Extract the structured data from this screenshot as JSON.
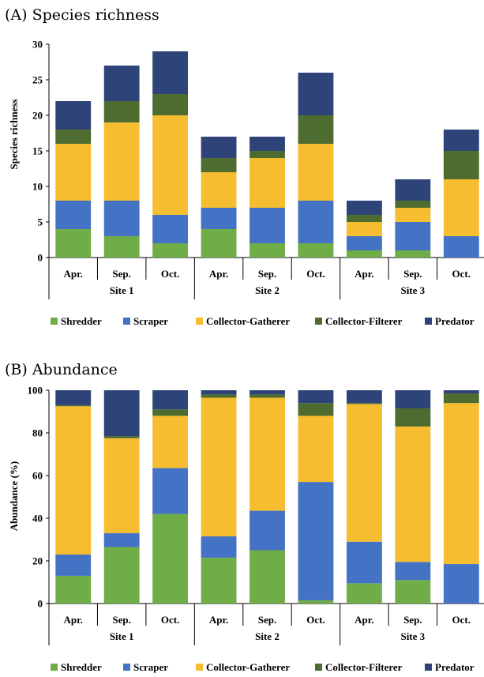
{
  "colors": {
    "Shredder": "#70ad47",
    "Scraper": "#4472c4",
    "Collector-Gatherer": "#f5bd2f",
    "Collector-Filterer": "#4e6b30",
    "Predator": "#2e4478"
  },
  "chart_data": [
    {
      "type": "bar",
      "stacked": true,
      "title": "(A) Species richness",
      "ylabel": "Species richness",
      "xlabel": "",
      "ylim": [
        0,
        30
      ],
      "yticks": [
        0,
        5,
        10,
        15,
        20,
        25,
        30
      ],
      "grid": false,
      "legend": "bottom",
      "categories": [
        "Apr.",
        "Sep.",
        "Oct.",
        "Apr.",
        "Sep.",
        "Oct.",
        "Apr.",
        "Sep.",
        "Oct."
      ],
      "groups": [
        {
          "label": "Site 1",
          "count": 3
        },
        {
          "label": "Site 2",
          "count": 3
        },
        {
          "label": "Site 3",
          "count": 3
        }
      ],
      "series": [
        {
          "name": "Shredder",
          "values": [
            4,
            3,
            2,
            4,
            2,
            2,
            1,
            1,
            0
          ]
        },
        {
          "name": "Scraper",
          "values": [
            4,
            5,
            4,
            3,
            5,
            6,
            2,
            4,
            3
          ]
        },
        {
          "name": "Collector-Gatherer",
          "values": [
            8,
            11,
            14,
            5,
            7,
            8,
            2,
            2,
            8
          ]
        },
        {
          "name": "Collector-Filterer",
          "values": [
            2,
            3,
            3,
            2,
            1,
            4,
            1,
            1,
            4
          ]
        },
        {
          "name": "Predator",
          "values": [
            4,
            5,
            6,
            3,
            2,
            6,
            2,
            3,
            3
          ]
        }
      ]
    },
    {
      "type": "bar",
      "stacked": true,
      "title": "(B) Abundance",
      "ylabel": "Abundance (%)",
      "xlabel": "",
      "ylim": [
        0,
        100
      ],
      "yticks": [
        0,
        20,
        40,
        60,
        80,
        100
      ],
      "grid": false,
      "legend": "bottom",
      "categories": [
        "Apr.",
        "Sep.",
        "Oct.",
        "Apr.",
        "Sep.",
        "Oct.",
        "Apr.",
        "Sep.",
        "Oct."
      ],
      "groups": [
        {
          "label": "Site 1",
          "count": 3
        },
        {
          "label": "Site 2",
          "count": 3
        },
        {
          "label": "Site 3",
          "count": 3
        }
      ],
      "series": [
        {
          "name": "Shredder",
          "values": [
            13,
            26.5,
            42,
            21.5,
            25,
            1.5,
            9.5,
            11,
            0
          ]
        },
        {
          "name": "Scraper",
          "values": [
            10,
            6.5,
            21.5,
            10,
            18.5,
            55.5,
            19.5,
            8.5,
            18.5
          ]
        },
        {
          "name": "Collector-Gatherer",
          "values": [
            69.5,
            44.5,
            24.5,
            65,
            53,
            31,
            64.5,
            63.5,
            75.5
          ]
        },
        {
          "name": "Collector-Filterer",
          "values": [
            0.5,
            1,
            3,
            1.5,
            1.5,
            6,
            0.5,
            8.5,
            4.5
          ]
        },
        {
          "name": "Predator",
          "values": [
            7,
            21.5,
            9,
            2,
            2,
            6,
            6,
            8.5,
            1.5
          ]
        }
      ]
    }
  ]
}
